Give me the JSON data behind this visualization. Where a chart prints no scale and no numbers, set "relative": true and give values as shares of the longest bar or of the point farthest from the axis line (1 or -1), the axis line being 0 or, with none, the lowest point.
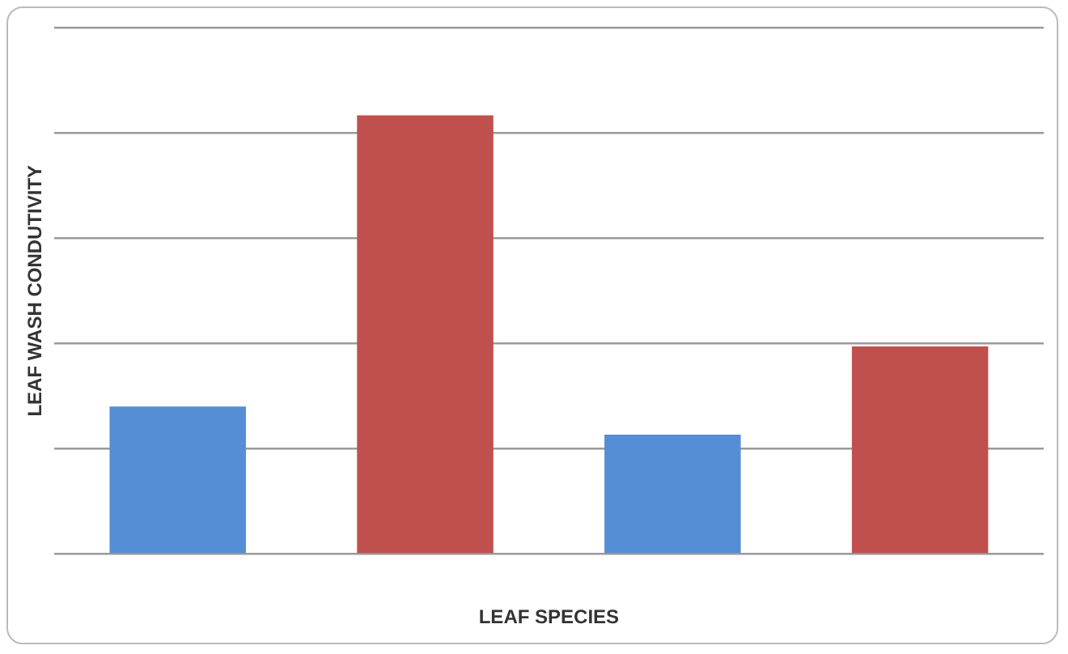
{
  "chart_data": {
    "type": "bar",
    "xlabel": "LEAF SPECIES",
    "ylabel": "LEAF WASH CONDUTIVITY",
    "categories": [
      null,
      null,
      null,
      null
    ],
    "values": [
      0.336,
      1,
      0.272,
      0.473
    ],
    "colors": [
      "#558ed5",
      "#c0504d",
      "#558ed5",
      "#c0504d"
    ],
    "relative": true,
    "grid": "y",
    "legend": false
  }
}
